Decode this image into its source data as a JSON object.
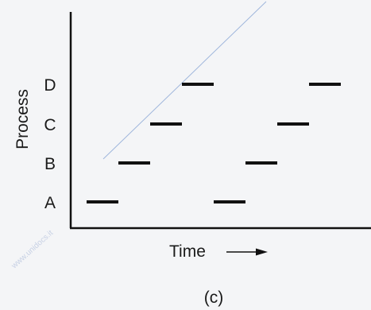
{
  "diagram": {
    "y_axis_label": "Process",
    "x_axis_label": "Time",
    "caption": "(c)",
    "watermark": "www.unidocs.it",
    "processes": [
      "A",
      "B",
      "C",
      "D"
    ],
    "timeline": [
      {
        "process": "A",
        "slot": 0
      },
      {
        "process": "B",
        "slot": 1
      },
      {
        "process": "C",
        "slot": 2
      },
      {
        "process": "D",
        "slot": 3
      },
      {
        "process": "A",
        "slot": 4
      },
      {
        "process": "B",
        "slot": 5
      },
      {
        "process": "C",
        "slot": 6
      },
      {
        "process": "D",
        "slot": 7
      }
    ],
    "colors": {
      "axis": "#111111",
      "bar": "#111111",
      "watermark_line": "#9fb6dc"
    }
  }
}
